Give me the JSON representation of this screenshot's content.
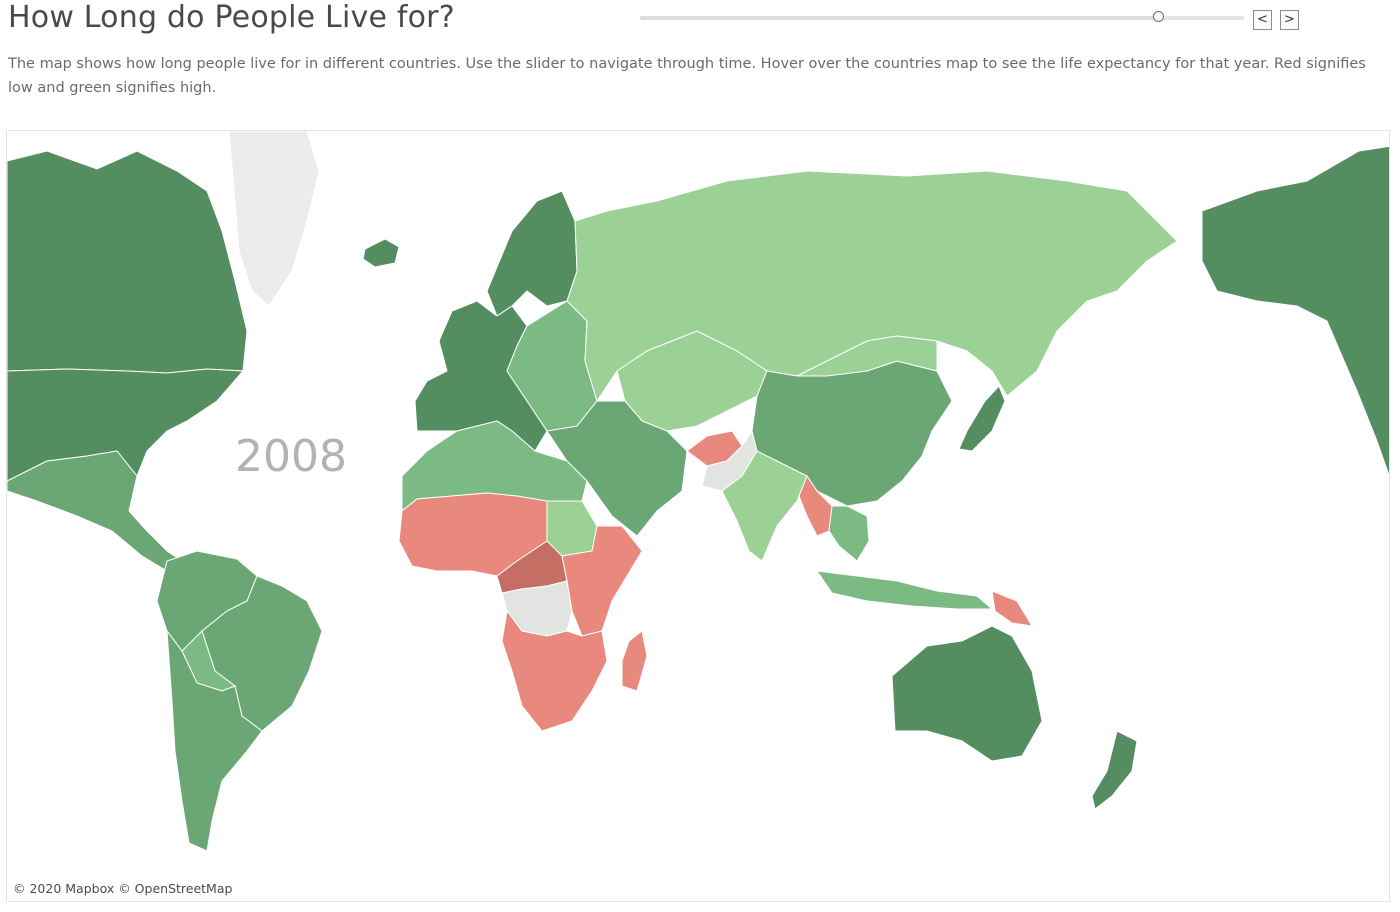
{
  "title": "How Long do People Live for?",
  "subtitle": "The map shows how long people live for in different countries. Use the slider to navigate through time. Hover over the countries map to see the life expectancy for that year. Red signifies low and green signifies high.",
  "slider": {
    "value_fraction": 0.86,
    "prev_label": "<",
    "next_label": ">"
  },
  "map": {
    "year": "2008",
    "attribution": "© 2020 Mapbox © OpenStreetMap",
    "colors": {
      "high": "#548d60",
      "mid_high": "#6aa774",
      "mid": "#7bba83",
      "mid_low": "#9bd195",
      "low": "#e9887d",
      "lowest": "#c56e63",
      "no_data": "#e2e4e1",
      "greenland": "#ececec"
    },
    "regions": [
      {
        "name": "canada",
        "level": "high"
      },
      {
        "name": "usa",
        "level": "high"
      },
      {
        "name": "alaska",
        "level": "high"
      },
      {
        "name": "greenland",
        "level": "greenland"
      },
      {
        "name": "iceland",
        "level": "high"
      },
      {
        "name": "mexico-central-america",
        "level": "mid_high"
      },
      {
        "name": "south-america-north",
        "level": "mid_high"
      },
      {
        "name": "brazil",
        "level": "mid_high"
      },
      {
        "name": "bolivia",
        "level": "mid"
      },
      {
        "name": "south-america-south",
        "level": "mid_high"
      },
      {
        "name": "scandinavia",
        "level": "high"
      },
      {
        "name": "western-europe",
        "level": "high"
      },
      {
        "name": "eastern-europe",
        "level": "mid"
      },
      {
        "name": "russia",
        "level": "mid_low"
      },
      {
        "name": "north-africa",
        "level": "mid"
      },
      {
        "name": "sudan",
        "level": "mid_low"
      },
      {
        "name": "west-africa",
        "level": "low"
      },
      {
        "name": "central-africa",
        "level": "lowest"
      },
      {
        "name": "drc",
        "level": "no_data"
      },
      {
        "name": "east-africa",
        "level": "low"
      },
      {
        "name": "southern-africa",
        "level": "low"
      },
      {
        "name": "madagascar",
        "level": "low"
      },
      {
        "name": "middle-east",
        "level": "mid_high"
      },
      {
        "name": "central-asia",
        "level": "mid_low"
      },
      {
        "name": "afghanistan",
        "level": "low"
      },
      {
        "name": "pakistan",
        "level": "no_data"
      },
      {
        "name": "india",
        "level": "mid_low"
      },
      {
        "name": "china",
        "level": "mid_high"
      },
      {
        "name": "mongolia",
        "level": "mid_low"
      },
      {
        "name": "myanmar",
        "level": "low"
      },
      {
        "name": "southeast-asia",
        "level": "mid"
      },
      {
        "name": "indonesia",
        "level": "mid"
      },
      {
        "name": "papua-new-guinea",
        "level": "low"
      },
      {
        "name": "japan",
        "level": "high"
      },
      {
        "name": "australia",
        "level": "high"
      },
      {
        "name": "new-zealand",
        "level": "high"
      }
    ]
  }
}
